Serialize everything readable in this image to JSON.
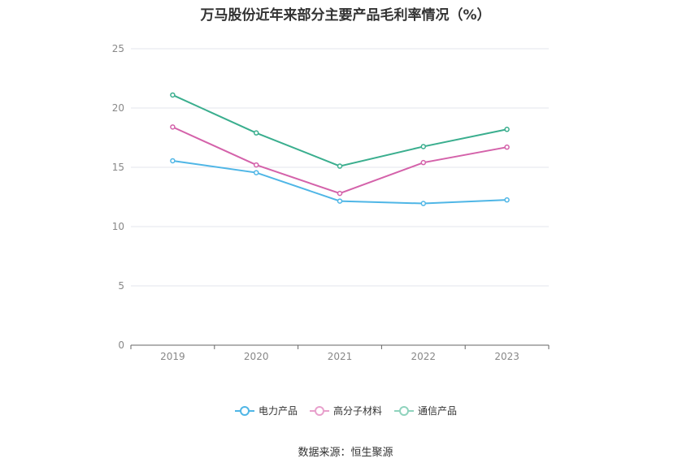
{
  "chart_data": {
    "type": "line",
    "title": "万马股份近年来部分主要产品毛利率情况（%）",
    "categories": [
      "2019",
      "2020",
      "2021",
      "2022",
      "2023"
    ],
    "ylim": [
      0,
      25
    ],
    "yticks": [
      0,
      5,
      10,
      15,
      20,
      25
    ],
    "grid": true,
    "legend_position": "bottom",
    "series": [
      {
        "name": "电力产品",
        "color": "#4fb6e6",
        "values": [
          15.55,
          14.55,
          12.15,
          11.95,
          12.25
        ]
      },
      {
        "name": "高分子材料",
        "color": "#d462aa",
        "values": [
          18.4,
          15.2,
          12.8,
          15.4,
          16.7
        ]
      },
      {
        "name": "通信产品",
        "color": "#3aae8e",
        "values": [
          21.1,
          17.9,
          15.1,
          16.75,
          18.2
        ]
      }
    ]
  },
  "legend": {
    "items": [
      {
        "label": "电力产品",
        "color": "#4fb6e6"
      },
      {
        "label": "高分子材料",
        "color": "#e8a0cc"
      },
      {
        "label": "通信产品",
        "color": "#8fd3bd"
      }
    ]
  },
  "source": "数据来源：恒生聚源"
}
